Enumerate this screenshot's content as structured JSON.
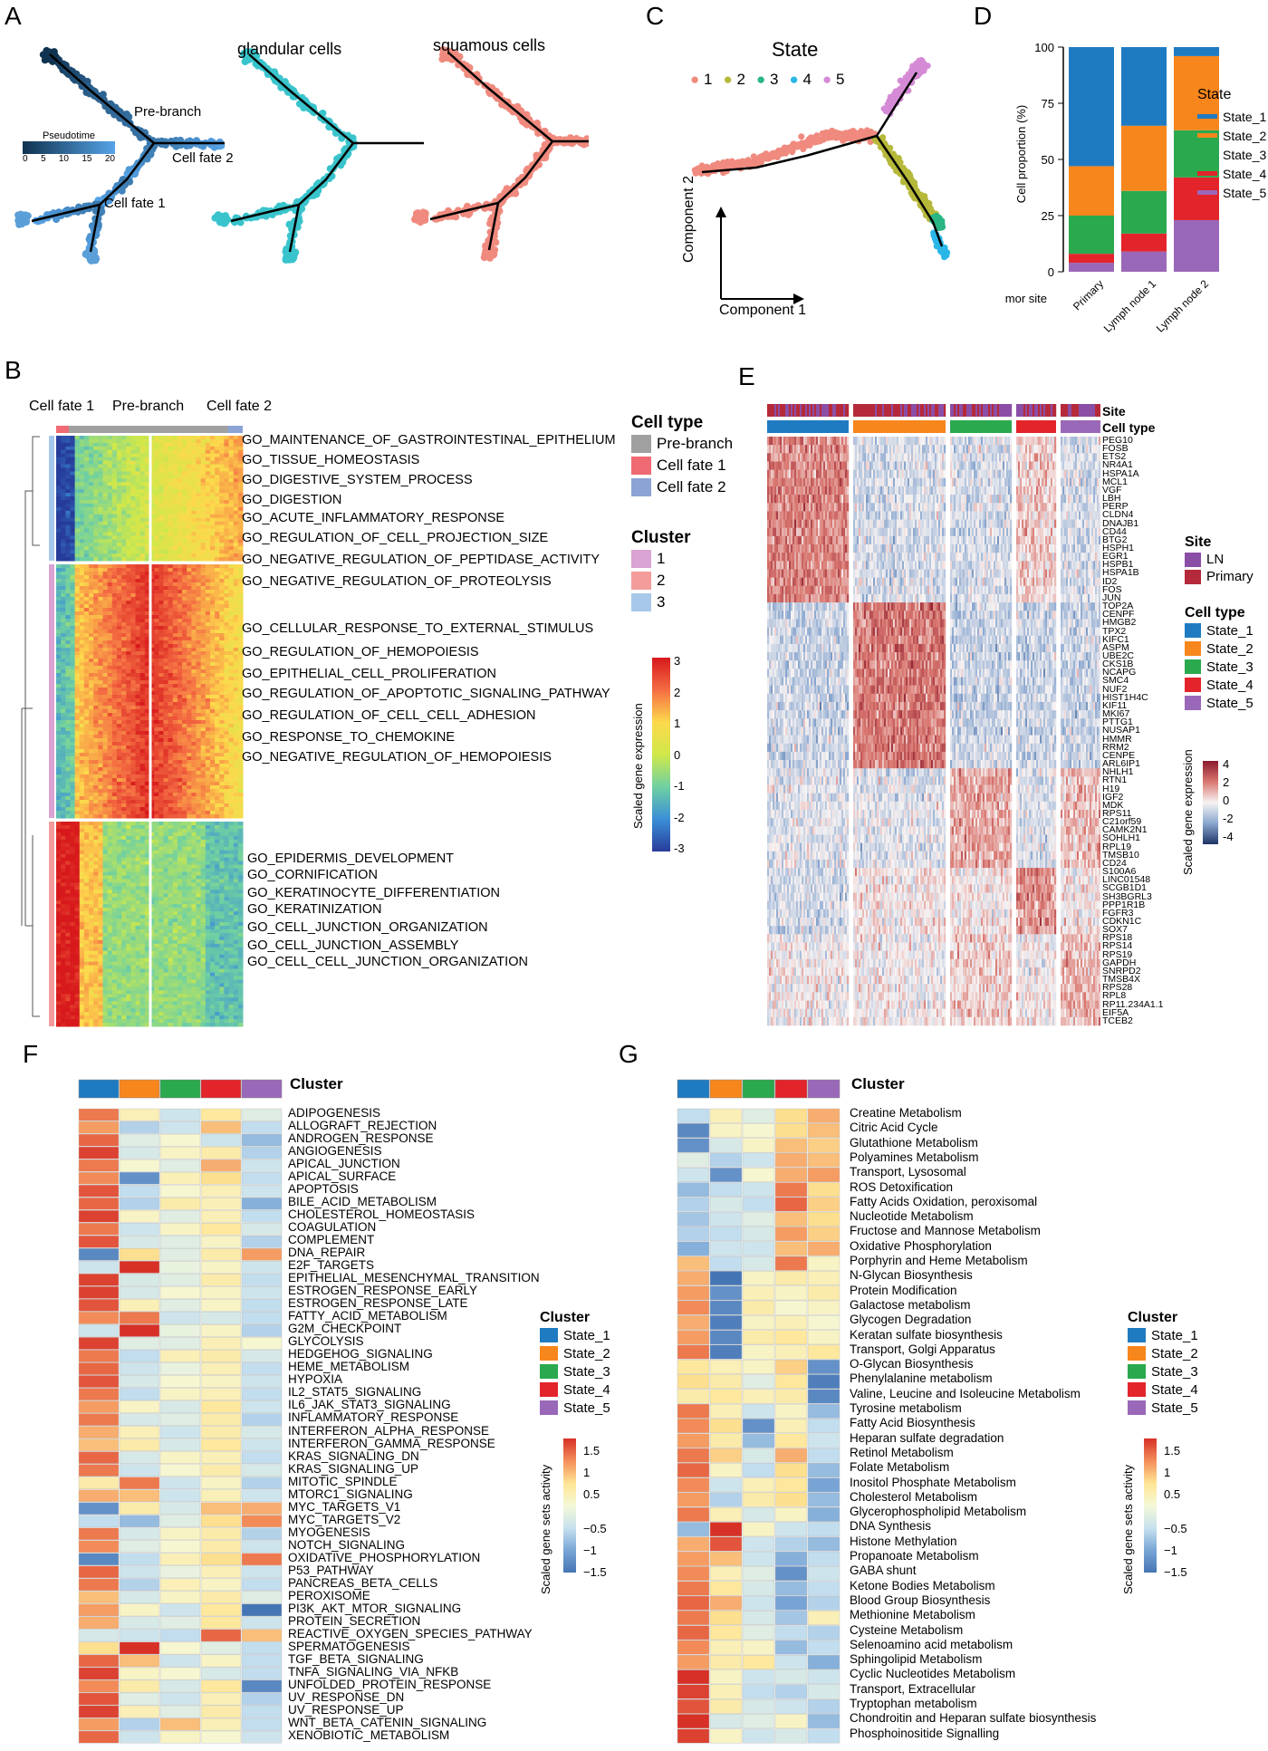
{
  "panels": {
    "A": "A",
    "B": "B",
    "C": "C",
    "D": "D",
    "E": "E",
    "F": "F",
    "G": "G"
  },
  "panelA": {
    "labels": {
      "pre_branch": "Pre-branch",
      "cell_fate_2": "Cell fate 2",
      "cell_fate_1": "Cell fate 1",
      "glandular": "glandular cells",
      "squamous": "squamous cells"
    },
    "pseudotime": {
      "title": "Pseudotime",
      "ticks": [
        "0",
        "5",
        "10",
        "15",
        "20"
      ],
      "colors": [
        "#0f3350",
        "#56a3e6"
      ]
    },
    "colors": {
      "glandular": "#39c4cc",
      "squamous": "#f08a7e",
      "line": "#000000"
    }
  },
  "panelC": {
    "title": "State",
    "legend": [
      {
        "label": "1",
        "color": "#f08a7e"
      },
      {
        "label": "2",
        "color": "#b6b83a"
      },
      {
        "label": "3",
        "color": "#2ab584"
      },
      {
        "label": "4",
        "color": "#2bb6e8"
      },
      {
        "label": "5",
        "color": "#d58ad6"
      }
    ],
    "xlabel": "Component 1",
    "ylabel": "Component 2"
  },
  "panelD": {
    "ylabel": "Cell proportion (%)",
    "xlabel_prefix": "Tumor site",
    "legend_title": "State",
    "chart_data": {
      "type": "bar",
      "stacked": true,
      "categories": [
        "Primary",
        "Lymph node 1",
        "Lymph node 2"
      ],
      "yticks": [
        "0",
        "25",
        "50",
        "75",
        "100"
      ],
      "ylim": [
        0,
        100
      ],
      "series": [
        {
          "name": "State_5",
          "color": "#9a68b8",
          "values": [
            4,
            9,
            23
          ]
        },
        {
          "name": "State_4",
          "color": "#e3242b",
          "values": [
            4,
            8,
            19
          ]
        },
        {
          "name": "State_3",
          "color": "#2ba94e",
          "values": [
            17,
            19,
            21
          ]
        },
        {
          "name": "State_2",
          "color": "#f7861c",
          "values": [
            22,
            29,
            33
          ]
        },
        {
          "name": "State_1",
          "color": "#1f7bc1",
          "values": [
            53,
            35,
            4
          ]
        }
      ]
    }
  },
  "panelB": {
    "top_labels": {
      "cf1": "Cell fate 1",
      "pre": "Pre-branch",
      "cf2": "Cell fate 2"
    },
    "legend": {
      "celltype_title": "Cell type",
      "celltype": [
        {
          "label": "Pre-branch",
          "color": "#a0a0a0"
        },
        {
          "label": "Cell fate 1",
          "color": "#ef6a72"
        },
        {
          "label": "Cell fate 2",
          "color": "#8ca3d6"
        }
      ],
      "cluster_title": "Cluster",
      "cluster": [
        {
          "label": "1",
          "color": "#d9a3d3"
        },
        {
          "label": "2",
          "color": "#f39c9b"
        },
        {
          "label": "3",
          "color": "#a7c8ea"
        }
      ],
      "scale_title": "Scaled gene expression",
      "scale_ticks": [
        "3",
        "2",
        "1",
        "0",
        "-1",
        "-2",
        "-3"
      ]
    },
    "go_terms_cluster1": [
      "GO_MAINTENANCE_OF_GASTROINTESTINAL_EPITHELIUM",
      "GO_TISSUE_HOMEOSTASIS",
      "GO_DIGESTIVE_SYSTEM_PROCESS",
      "GO_DIGESTION",
      "GO_ACUTE_INFLAMMATORY_RESPONSE",
      "GO_REGULATION_OF_CELL_PROJECTION_SIZE",
      "GO_NEGATIVE_REGULATION_OF_PEPTIDASE_ACTIVITY",
      "GO_NEGATIVE_REGULATION_OF_PROTEOLYSIS"
    ],
    "go_terms_cluster2": [
      "GO_CELLULAR_RESPONSE_TO_EXTERNAL_STIMULUS",
      "GO_REGULATION_OF_HEMOPOIESIS",
      "GO_EPITHELIAL_CELL_PROLIFERATION",
      "GO_REGULATION_OF_APOPTOTIC_SIGNALING_PATHWAY",
      "GO_REGULATION_OF_CELL_CELL_ADHESION",
      "GO_RESPONSE_TO_CHEMOKINE",
      "GO_NEGATIVE_REGULATION_OF_HEMOPOIESIS"
    ],
    "go_terms_cluster3": [
      "GO_EPIDERMIS_DEVELOPMENT",
      "GO_CORNIFICATION",
      "GO_KERATINOCYTE_DIFFERENTIATION",
      "GO_KERATINIZATION",
      "GO_CELL_JUNCTION_ORGANIZATION",
      "GO_CELL_JUNCTION_ASSEMBLY",
      "GO_CELL_CELL_JUNCTION_ORGANIZATION"
    ]
  },
  "panelE": {
    "row_labels": {
      "site": "Site",
      "celltype": "Cell type"
    },
    "legend": {
      "site_title": "Site",
      "site": [
        {
          "label": "LN",
          "color": "#8b4ea6"
        },
        {
          "label": "Primary",
          "color": "#b52a3a"
        }
      ],
      "celltype_title": "Cell type",
      "celltype": [
        {
          "label": "State_1",
          "color": "#1f7bc1"
        },
        {
          "label": "State_2",
          "color": "#f7861c"
        },
        {
          "label": "State_3",
          "color": "#2ba94e"
        },
        {
          "label": "State_4",
          "color": "#e3242b"
        },
        {
          "label": "State_5",
          "color": "#9a68b8"
        }
      ],
      "scale_title": "Scaled gene expression",
      "scale_ticks": [
        "4",
        "2",
        "0",
        "-2",
        "-4"
      ]
    },
    "genes": [
      "PEG10",
      "FOSB",
      "ETS2",
      "NR4A1",
      "HSPA1A",
      "MCL1",
      "VGF",
      "LBH",
      "PERP",
      "CLDN4",
      "DNAJB1",
      "CD44",
      "BTG2",
      "HSPH1",
      "EGR1",
      "HSPB1",
      "HSPA1B",
      "ID2",
      "FOS",
      "JUN",
      "TOP2A",
      "CENPF",
      "HMGB2",
      "TPX2",
      "KIFC1",
      "ASPM",
      "UBE2C",
      "CKS1B",
      "NCAPG",
      "SMC4",
      "NUF2",
      "HIST1H4C",
      "KIF11",
      "MKI67",
      "PTTG1",
      "NUSAP1",
      "HMMR",
      "RRM2",
      "CENPE",
      "ARL6IP1",
      "NHLH1",
      "RTN1",
      "H19",
      "IGF2",
      "MDK",
      "RPS11",
      "C21orf59",
      "CAMK2N1",
      "SOHLH1",
      "RPL19",
      "TMSB10",
      "CD24",
      "S100A6",
      "LINC01548",
      "SCGB1D1",
      "SH3BGRL3",
      "PPP1R1B",
      "FGFR3",
      "CDKN1C",
      "SOX7",
      "RPS18",
      "RPS14",
      "RPS19",
      "GAPDH",
      "SNRPD2",
      "TMSB4X",
      "RPS28",
      "RPL8",
      "RP11.234A1.1",
      "EIF5A",
      "TCEB2"
    ]
  },
  "panelF": {
    "header": "Cluster",
    "legend_title": "Cluster",
    "legend": [
      {
        "label": "State_1",
        "color": "#1f7bc1"
      },
      {
        "label": "State_2",
        "color": "#f7861c"
      },
      {
        "label": "State_3",
        "color": "#2ba94e"
      },
      {
        "label": "State_4",
        "color": "#e3242b"
      },
      {
        "label": "State_5",
        "color": "#9a68b8"
      }
    ],
    "scale_title": "Scaled gene sets activity",
    "scale_ticks": [
      "1.5",
      "1",
      "0.5",
      "−0.5",
      "−1",
      "−1.5"
    ],
    "rows": [
      "ADIPOGENESIS",
      "ALLOGRAFT_REJECTION",
      "ANDROGEN_RESPONSE",
      "ANGIOGENESIS",
      "APICAL_JUNCTION",
      "APICAL_SURFACE",
      "APOPTOSIS",
      "BILE_ACID_METABOLISM",
      "CHOLESTEROL_HOMEOSTASIS",
      "COAGULATION",
      "COMPLEMENT",
      "DNA_REPAIR",
      "E2F_TARGETS",
      "EPITHELIAL_MESENCHYMAL_TRANSITION",
      "ESTROGEN_RESPONSE_EARLY",
      "ESTROGEN_RESPONSE_LATE",
      "FATTY_ACID_METABOLISM",
      "G2M_CHECKPOINT",
      "GLYCOLYSIS",
      "HEDGEHOG_SIGNALING",
      "HEME_METABOLISM",
      "HYPOXIA",
      "IL2_STAT5_SIGNALING",
      "IL6_JAK_STAT3_SIGNALING",
      "INFLAMMATORY_RESPONSE",
      "INTERFERON_ALPHA_RESPONSE",
      "INTERFERON_GAMMA_RESPONSE",
      "KRAS_SIGNALING_DN",
      "KRAS_SIGNALING_UP",
      "MITOTIC_SPINDLE",
      "MTORC1_SIGNALING",
      "MYC_TARGETS_V1",
      "MYC_TARGETS_V2",
      "MYOGENESIS",
      "NOTCH_SIGNALING",
      "OXIDATIVE_PHOSPHORYLATION",
      "P53_PATHWAY",
      "PANCREAS_BETA_CELLS",
      "PEROXISOME",
      "PI3K_AKT_MTOR_SIGNALING",
      "PROTEIN_SECRETION",
      "REACTIVE_OXYGEN_SPECIES_PATHWAY",
      "SPERMATOGENESIS",
      "TGF_BETA_SIGNALING",
      "TNFA_SIGNALING_VIA_NFKB",
      "UNFOLDED_PROTEIN_RESPONSE",
      "UV_RESPONSE_DN",
      "UV_RESPONSE_UP",
      "WNT_BETA_CATENIN_SIGNALING",
      "XENOBIOTIC_METABOLISM"
    ],
    "values": [
      [
        1.2,
        0.3,
        -0.4,
        0.5,
        -0.2
      ],
      [
        1.0,
        -0.6,
        -0.4,
        0.8,
        -0.5
      ],
      [
        1.3,
        -0.2,
        0.1,
        -0.4,
        -0.8
      ],
      [
        1.5,
        -0.3,
        0.2,
        0.4,
        -0.6
      ],
      [
        1.2,
        0.1,
        -0.2,
        0.9,
        -0.4
      ],
      [
        1.1,
        -1.2,
        0.3,
        0.6,
        -0.5
      ],
      [
        1.4,
        -0.5,
        0.1,
        0.3,
        -0.4
      ],
      [
        1.3,
        -0.6,
        0.4,
        0.3,
        -0.9
      ],
      [
        1.5,
        0.2,
        -0.2,
        0.3,
        -0.5
      ],
      [
        1.2,
        -0.4,
        0.2,
        0.5,
        -0.3
      ],
      [
        1.4,
        -0.3,
        -0.2,
        0.2,
        -0.6
      ],
      [
        -1.3,
        0.6,
        -0.2,
        0.4,
        1.0
      ],
      [
        -0.4,
        1.6,
        -0.1,
        0.2,
        -0.4
      ],
      [
        1.5,
        -0.3,
        -0.2,
        0.4,
        -0.5
      ],
      [
        1.5,
        -0.3,
        0.1,
        0.2,
        -0.4
      ],
      [
        1.4,
        0.3,
        -0.2,
        0.2,
        -0.5
      ],
      [
        1.1,
        1.2,
        -0.4,
        -0.3,
        -0.5
      ],
      [
        -0.4,
        1.6,
        -0.1,
        0.2,
        -0.6
      ],
      [
        1.5,
        -0.2,
        -0.2,
        0.3,
        0.1
      ],
      [
        1.2,
        -0.5,
        0.3,
        0.4,
        -0.3
      ],
      [
        1.3,
        -0.4,
        -0.1,
        0.3,
        -0.5
      ],
      [
        1.4,
        -0.3,
        0.1,
        0.2,
        -0.4
      ],
      [
        1.2,
        -0.5,
        0.2,
        0.3,
        -0.5
      ],
      [
        1.0,
        0.2,
        -0.3,
        0.5,
        -0.4
      ],
      [
        1.2,
        -0.3,
        -0.2,
        0.4,
        -0.6
      ],
      [
        0.9,
        0.3,
        -0.4,
        0.4,
        -0.3
      ],
      [
        0.8,
        0.4,
        -0.3,
        0.5,
        -0.4
      ],
      [
        1.3,
        -0.3,
        0.2,
        0.3,
        -0.5
      ],
      [
        1.2,
        -0.4,
        0.1,
        0.4,
        -0.3
      ],
      [
        0.4,
        1.2,
        -0.4,
        0.2,
        -0.6
      ],
      [
        0.9,
        0.8,
        -0.4,
        0.3,
        -0.4
      ],
      [
        -1.2,
        0.4,
        -0.3,
        0.8,
        0.9
      ],
      [
        -0.5,
        -0.8,
        -0.2,
        0.6,
        1.1
      ],
      [
        1.2,
        -0.3,
        0.2,
        0.4,
        -0.6
      ],
      [
        1.1,
        -0.2,
        0.1,
        0.4,
        -0.4
      ],
      [
        -1.3,
        -0.5,
        0.3,
        0.6,
        1.2
      ],
      [
        1.3,
        -0.4,
        -0.1,
        0.3,
        -0.4
      ],
      [
        1.2,
        -0.6,
        0.3,
        0.2,
        -0.5
      ],
      [
        0.8,
        -0.3,
        0.2,
        0.4,
        -0.2
      ],
      [
        1.0,
        0.2,
        -0.4,
        0.5,
        -1.5
      ],
      [
        0.9,
        -0.3,
        -0.2,
        0.5,
        -0.4
      ],
      [
        -0.3,
        -0.4,
        -0.5,
        1.3,
        0.8
      ],
      [
        0.6,
        1.6,
        0.1,
        -0.2,
        -0.5
      ],
      [
        1.3,
        0.8,
        -0.4,
        0.2,
        -0.5
      ],
      [
        1.5,
        0.2,
        0.1,
        -0.3,
        -0.5
      ],
      [
        1.1,
        0.4,
        -0.3,
        0.5,
        -1.3
      ],
      [
        1.4,
        -0.2,
        -0.4,
        0.3,
        -0.6
      ],
      [
        1.5,
        0.3,
        -0.2,
        0.4,
        -0.5
      ],
      [
        1.0,
        -0.6,
        0.8,
        0.3,
        -0.5
      ],
      [
        1.3,
        -0.4,
        0.2,
        0.1,
        -0.4
      ]
    ]
  },
  "panelG": {
    "header": "Cluster",
    "legend_title": "Cluster",
    "legend": [
      {
        "label": "State_1",
        "color": "#1f7bc1"
      },
      {
        "label": "State_2",
        "color": "#f7861c"
      },
      {
        "label": "State_3",
        "color": "#2ba94e"
      },
      {
        "label": "State_4",
        "color": "#e3242b"
      },
      {
        "label": "State_5",
        "color": "#9a68b8"
      }
    ],
    "scale_title": "Scaled gene sets activity",
    "scale_ticks": [
      "1.5",
      "1",
      "0.5",
      "−0.5",
      "−1",
      "−1.5"
    ],
    "rows": [
      "Creatine Metabolism",
      "Citric Acid Cycle",
      "Glutathione Metabolism",
      "Polyamines Metabolism",
      "Transport, Lysosomal",
      "ROS Detoxification",
      "Fatty Acids Oxidation, peroxisomal",
      "Nucleotide Metabolism",
      "Fructose and Mannose Metabolism",
      "Oxidative Phosphorylation",
      "Porphyrin and Heme Metabolism",
      "N-Glycan Biosynthesis",
      "Protein Modification",
      "Galactose metabolism",
      "Glycogen Degradation",
      "Keratan sulfate biosynthesis",
      "Transport, Golgi Apparatus",
      "O-Glycan Biosynthesis",
      "Phenylalanine metabolism",
      "Valine, Leucine and Isoleucine Metabolism",
      "Tyrosine metabolism",
      "Fatty Acid Biosynthesis",
      "Heparan sulfate degradation",
      "Retinol Metabolism",
      "Folate Metabolism",
      "Inositol Phosphate Metabolism",
      "Cholesterol Metabolism",
      "Glycerophospholipid Metabolism",
      "DNA Synthesis",
      "Histone Methylation",
      "Propanoate Metabolism",
      "GABA shunt",
      "Ketone Bodies Metabolism",
      "Blood Group Biosynthesis",
      "Methionine Metabolism",
      "Cysteine Metabolism",
      "Selenoamino acid metabolism",
      "Sphingolipid Metabolism",
      "Cyclic Nucleotides Metabolism",
      "Transport, Extracellular",
      "Tryptophan metabolism",
      "Chondroitin and Heparan sulfate biosynthesis",
      "Phosphoinositide Signalling"
    ],
    "values": [
      [
        -0.5,
        0.3,
        -0.2,
        0.6,
        0.9
      ],
      [
        -1.3,
        0.2,
        0.1,
        0.6,
        0.8
      ],
      [
        -1.2,
        -0.3,
        0.2,
        0.8,
        0.7
      ],
      [
        -0.2,
        -0.6,
        -0.4,
        0.9,
        0.8
      ],
      [
        -0.4,
        -1.2,
        0.1,
        0.9,
        1.0
      ],
      [
        -0.8,
        -0.5,
        -0.4,
        1.2,
        0.6
      ],
      [
        -0.6,
        -0.3,
        -0.5,
        1.3,
        0.7
      ],
      [
        -0.7,
        -0.4,
        -0.2,
        0.8,
        0.6
      ],
      [
        -0.6,
        -0.5,
        -0.3,
        1.0,
        0.7
      ],
      [
        -0.9,
        -0.4,
        -0.4,
        0.8,
        0.9
      ],
      [
        0.8,
        -0.5,
        -0.3,
        1.2,
        0.2
      ],
      [
        0.9,
        -1.5,
        0.2,
        0.4,
        0.3
      ],
      [
        1.0,
        -1.2,
        0.3,
        0.2,
        0.4
      ],
      [
        1.1,
        -1.3,
        0.4,
        0.1,
        0.2
      ],
      [
        0.9,
        -1.4,
        0.2,
        0.3,
        0.1
      ],
      [
        1.0,
        -1.3,
        0.4,
        0.5,
        0.2
      ],
      [
        1.2,
        -1.4,
        0.2,
        0.3,
        0.5
      ],
      [
        0.5,
        0.3,
        0.2,
        0.7,
        -1.2
      ],
      [
        0.6,
        0.4,
        -0.2,
        0.5,
        -1.4
      ],
      [
        0.4,
        0.5,
        0.3,
        0.4,
        -1.3
      ],
      [
        1.2,
        0.3,
        -0.4,
        0.2,
        -0.8
      ],
      [
        1.1,
        0.6,
        -1.2,
        0.3,
        -0.5
      ],
      [
        1.0,
        0.4,
        -0.8,
        0.5,
        -0.4
      ],
      [
        1.2,
        0.7,
        -0.3,
        0.9,
        -0.5
      ],
      [
        1.3,
        0.2,
        -0.5,
        0.6,
        -0.8
      ],
      [
        1.1,
        -0.4,
        0.3,
        0.5,
        -1.0
      ],
      [
        1.0,
        -0.6,
        0.4,
        0.6,
        -0.8
      ],
      [
        1.2,
        0.3,
        -0.3,
        0.2,
        -0.9
      ],
      [
        -0.8,
        1.7,
        0.2,
        -0.4,
        -0.5
      ],
      [
        0.9,
        1.4,
        -0.4,
        -0.6,
        -0.8
      ],
      [
        1.0,
        0.8,
        -0.4,
        -0.9,
        -0.5
      ],
      [
        1.1,
        0.3,
        -0.2,
        -1.2,
        -0.4
      ],
      [
        1.2,
        0.5,
        -0.3,
        -0.8,
        -0.5
      ],
      [
        1.3,
        0.9,
        -0.4,
        -1.0,
        -0.6
      ],
      [
        1.2,
        0.6,
        -0.3,
        -0.7,
        0.3
      ],
      [
        1.3,
        0.5,
        -0.2,
        -0.5,
        -0.6
      ],
      [
        1.1,
        0.3,
        0.2,
        -0.8,
        -0.5
      ],
      [
        1.0,
        0.4,
        0.5,
        -0.4,
        -0.9
      ],
      [
        1.6,
        0.2,
        -0.4,
        -0.3,
        -0.4
      ],
      [
        1.5,
        0.3,
        -0.5,
        -0.6,
        -0.3
      ],
      [
        1.4,
        0.4,
        -0.3,
        -0.4,
        -0.6
      ],
      [
        1.6,
        -0.3,
        -0.2,
        0.2,
        -0.8
      ],
      [
        1.5,
        0.2,
        -0.4,
        -0.3,
        -0.5
      ]
    ]
  }
}
